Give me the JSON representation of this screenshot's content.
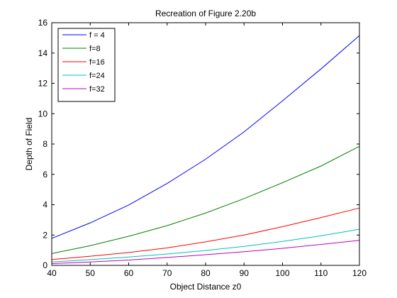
{
  "chart_data": {
    "type": "line",
    "title": "Recreation of Figure 2.20b",
    "xlabel": "Object Distance z0",
    "ylabel": "Depth of Field",
    "xlim": [
      40,
      120
    ],
    "ylim": [
      0,
      16
    ],
    "xticks": [
      40,
      50,
      60,
      70,
      80,
      90,
      100,
      110,
      120
    ],
    "yticks": [
      0,
      2,
      4,
      6,
      8,
      10,
      12,
      14,
      16
    ],
    "grid": false,
    "legend_position": "top-left",
    "x": [
      40,
      50,
      60,
      70,
      80,
      90,
      100,
      110,
      120
    ],
    "series": [
      {
        "name": "f = 4",
        "color": "#0000ff",
        "values": [
          1.78,
          2.8,
          3.98,
          5.4,
          7.0,
          8.8,
          10.85,
          12.95,
          15.15
        ]
      },
      {
        "name": "f=8",
        "color": "#008000",
        "values": [
          0.78,
          1.3,
          1.92,
          2.62,
          3.45,
          4.4,
          5.45,
          6.55,
          7.85
        ]
      },
      {
        "name": "f=16",
        "color": "#ff0000",
        "values": [
          0.38,
          0.6,
          0.85,
          1.15,
          1.55,
          2.0,
          2.55,
          3.15,
          3.78
        ]
      },
      {
        "name": "f=24",
        "color": "#00bfbf",
        "values": [
          0.22,
          0.38,
          0.55,
          0.75,
          0.98,
          1.25,
          1.58,
          1.95,
          2.38
        ]
      },
      {
        "name": "f=32",
        "color": "#bf00bf",
        "values": [
          0.12,
          0.22,
          0.35,
          0.52,
          0.7,
          0.9,
          1.12,
          1.38,
          1.65
        ]
      }
    ]
  }
}
